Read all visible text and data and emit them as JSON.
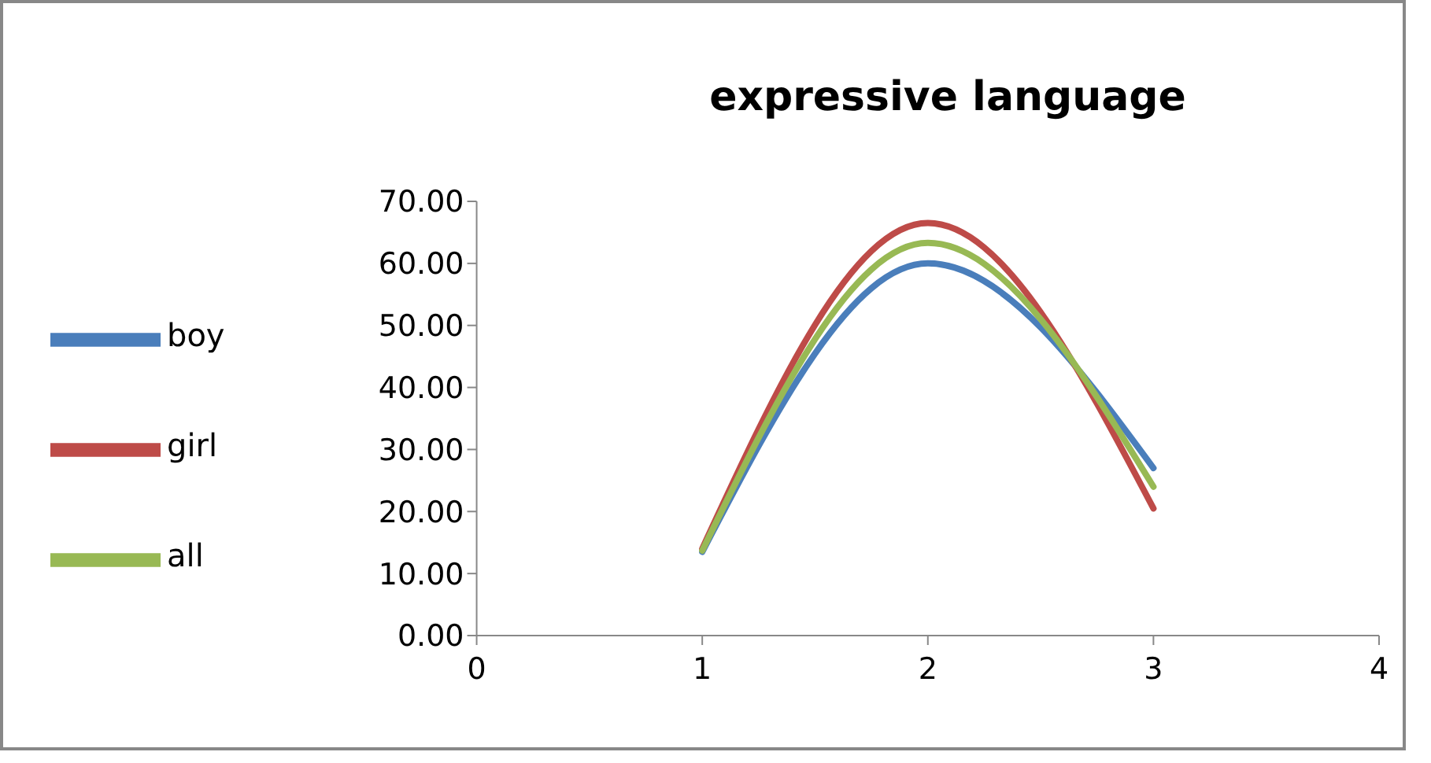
{
  "chart_data": {
    "type": "line",
    "title": "expressive language",
    "x": [
      1,
      2,
      3
    ],
    "series": [
      {
        "name": "boy",
        "color": "#4a7ebb",
        "values": [
          13.5,
          60,
          27
        ]
      },
      {
        "name": "girl",
        "color": "#be4b48",
        "values": [
          14,
          66.5,
          20.5
        ]
      },
      {
        "name": "all",
        "color": "#98b954",
        "values": [
          13.7,
          63.3,
          24
        ]
      }
    ],
    "xlim": [
      0,
      4
    ],
    "xticks": [
      0,
      1,
      2,
      3,
      4
    ],
    "ylim": [
      0,
      70
    ],
    "yticks": [
      {
        "value": 0,
        "label": "0.00"
      },
      {
        "value": 10,
        "label": "10.00"
      },
      {
        "value": 20,
        "label": "20.00"
      },
      {
        "value": 30,
        "label": "30.00"
      },
      {
        "value": 40,
        "label": "40.00"
      },
      {
        "value": 50,
        "label": "50.00"
      },
      {
        "value": 60,
        "label": "60.00"
      },
      {
        "value": 70,
        "label": "70.00"
      }
    ],
    "grid": false,
    "legend": "left",
    "marker": "none",
    "line_style": "solid"
  }
}
